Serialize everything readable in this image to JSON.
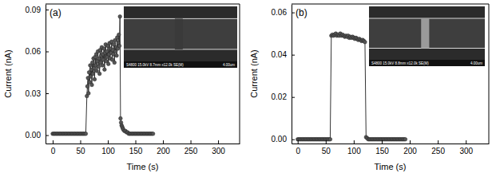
{
  "chart_data": [
    {
      "type": "line",
      "title": "(a)",
      "x_label": "Time (s)",
      "y_label": "Current (nA)",
      "color": "#555555",
      "marker": "circle",
      "annotations": [
        "S4800 15.0kV 8.7mm x12.0k SE(M)",
        "4.00um"
      ],
      "xlim": [
        -13,
        339
      ],
      "xticks": [
        0,
        50,
        100,
        150,
        200,
        250,
        300
      ],
      "ylim": [
        -0.006,
        0.094
      ],
      "yticks": [
        {
          "value": 0,
          "label": "0.00"
        },
        {
          "value": 0.03,
          "label": "0.03"
        },
        {
          "value": 0.06,
          "label": "0.06"
        },
        {
          "value": 0.09,
          "label": "0.09"
        }
      ],
      "x": [
        0,
        2,
        4,
        6,
        8,
        10,
        12,
        14,
        16,
        18,
        20,
        22,
        24,
        26,
        28,
        30,
        32,
        34,
        36,
        38,
        40,
        42,
        44,
        46,
        48,
        50,
        52,
        54,
        56,
        58,
        60,
        62,
        63,
        64,
        65,
        66,
        67,
        68,
        69,
        70,
        71,
        72,
        73,
        74,
        75,
        76,
        77,
        78,
        79,
        80,
        81,
        82,
        83,
        84,
        85,
        86,
        87,
        88,
        89,
        90,
        91,
        92,
        93,
        94,
        95,
        96,
        97,
        98,
        99,
        100,
        101,
        102,
        103,
        104,
        105,
        106,
        107,
        108,
        109,
        110,
        111,
        112,
        113,
        114,
        115,
        116,
        117,
        118,
        119,
        120,
        121,
        122,
        123,
        124,
        125,
        126,
        127,
        128,
        130,
        132,
        134,
        136,
        138,
        140,
        142,
        144,
        146,
        148,
        150,
        152,
        154,
        156,
        158,
        160,
        162,
        164,
        166,
        168,
        170,
        172,
        174,
        176,
        178,
        180,
        182
      ],
      "values": [
        0.001,
        0.001,
        0.001,
        0.001,
        0.001,
        0.001,
        0.001,
        0.001,
        0.001,
        0.001,
        0.001,
        0.001,
        0.001,
        0.001,
        0.001,
        0.001,
        0.001,
        0.001,
        0.001,
        0.001,
        0.001,
        0.001,
        0.001,
        0.001,
        0.001,
        0.001,
        0.001,
        0.001,
        0.001,
        0.001,
        0.001,
        0.028,
        0.035,
        0.041,
        0.03,
        0.045,
        0.038,
        0.05,
        0.042,
        0.047,
        0.036,
        0.052,
        0.044,
        0.055,
        0.048,
        0.04,
        0.056,
        0.05,
        0.058,
        0.046,
        0.053,
        0.06,
        0.049,
        0.055,
        0.044,
        0.061,
        0.052,
        0.057,
        0.063,
        0.05,
        0.058,
        0.054,
        0.062,
        0.047,
        0.059,
        0.065,
        0.053,
        0.06,
        0.056,
        0.064,
        0.051,
        0.058,
        0.066,
        0.055,
        0.062,
        0.059,
        0.067,
        0.054,
        0.061,
        0.058,
        0.065,
        0.052,
        0.068,
        0.06,
        0.063,
        0.057,
        0.07,
        0.062,
        0.066,
        0.072,
        0.064,
        0.085,
        0.012,
        0.009,
        0.007,
        0.006,
        0.005,
        0.004,
        0.003,
        0.003,
        0.002,
        0.002,
        0.001,
        0.001,
        0.001,
        0.001,
        0.001,
        0.001,
        0.001,
        0.001,
        0.001,
        0.001,
        0.001,
        0.001,
        0.001,
        0.001,
        0.001,
        0.001,
        0.001,
        0.001,
        0.001,
        0.001,
        0.001,
        0.001,
        0.001
      ]
    },
    {
      "type": "line",
      "title": "(b)",
      "x_label": "Time (s)",
      "y_label": "Current (nA)",
      "color": "#555555",
      "marker": "circle",
      "annotations": [
        "S4800 15.0kV 8.8mm x12.0k SE(M)",
        "4.00um"
      ],
      "xlim": [
        -11,
        341
      ],
      "xticks": [
        0,
        50,
        100,
        150,
        200,
        250,
        300
      ],
      "ylim": [
        -0.002,
        0.064
      ],
      "yticks": [
        {
          "value": 0,
          "label": "0.00"
        },
        {
          "value": 0.02,
          "label": "0.02"
        },
        {
          "value": 0.04,
          "label": "0.04"
        },
        {
          "value": 0.06,
          "label": "0.06"
        }
      ],
      "x": [
        0,
        2,
        4,
        6,
        8,
        10,
        12,
        14,
        16,
        18,
        20,
        22,
        24,
        26,
        28,
        30,
        32,
        34,
        36,
        38,
        40,
        42,
        44,
        46,
        48,
        50,
        52,
        54,
        56,
        58,
        60,
        62,
        64,
        66,
        68,
        70,
        72,
        74,
        76,
        78,
        80,
        82,
        84,
        86,
        88,
        90,
        92,
        94,
        96,
        98,
        100,
        102,
        104,
        106,
        108,
        110,
        112,
        114,
        116,
        118,
        120,
        122,
        124,
        126,
        128,
        130,
        132,
        134,
        136,
        138,
        140,
        142,
        144,
        146,
        148,
        150,
        152,
        154,
        156,
        158,
        160,
        162,
        164,
        166,
        168,
        170,
        172,
        174,
        176,
        178,
        180,
        182,
        184,
        186,
        188,
        190,
        192
      ],
      "values": [
        0,
        0,
        0,
        0,
        0,
        0,
        0,
        0,
        0,
        0,
        0,
        0,
        0,
        0,
        0,
        0,
        0,
        0,
        0,
        0,
        0,
        0,
        0,
        0,
        0,
        0,
        0,
        0,
        0,
        0,
        0.049,
        0.0495,
        0.049,
        0.0495,
        0.05,
        0.049,
        0.0495,
        0.049,
        0.05,
        0.049,
        0.0495,
        0.049,
        0.0485,
        0.049,
        0.0485,
        0.049,
        0.048,
        0.0485,
        0.048,
        0.0485,
        0.048,
        0.0475,
        0.048,
        0.0475,
        0.047,
        0.0475,
        0.047,
        0.0465,
        0.047,
        0.0465,
        0.046,
        0.001,
        0.0005,
        0,
        0,
        0,
        0,
        0,
        0,
        0,
        0,
        0,
        0,
        0,
        0,
        0,
        0,
        0,
        0,
        0,
        0,
        0,
        0,
        0,
        0,
        0,
        0,
        0,
        0,
        0,
        0,
        0,
        0,
        0,
        0,
        0,
        0
      ]
    }
  ]
}
